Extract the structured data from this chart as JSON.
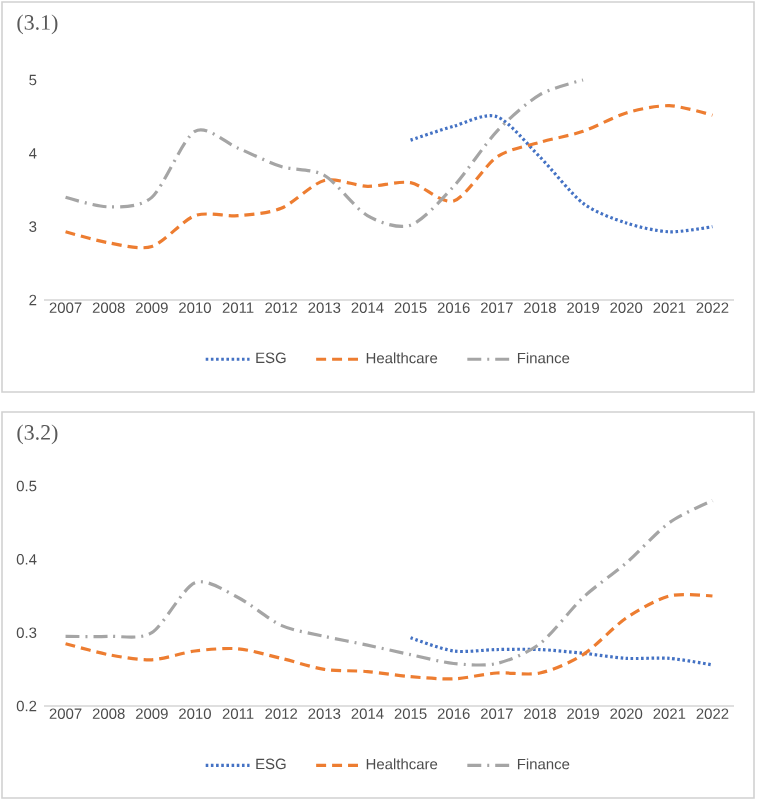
{
  "chart_data": [
    {
      "type": "line",
      "title": "(3.1)",
      "categories": [
        "2007",
        "2008",
        "2009",
        "2010",
        "2011",
        "2012",
        "2013",
        "2014",
        "2015",
        "2016",
        "2017",
        "2018",
        "2019",
        "2020",
        "2021",
        "2022"
      ],
      "ylim": [
        2,
        5
      ],
      "yticks": [
        2,
        3,
        4,
        5
      ],
      "legend": "bottom",
      "marker": "none",
      "series": [
        {
          "name": "ESG",
          "color": "#4472c4",
          "line_style": "dotted",
          "values": [
            null,
            null,
            null,
            null,
            null,
            null,
            null,
            null,
            4.18,
            4.37,
            4.5,
            3.95,
            3.32,
            3.05,
            2.93,
            3.0
          ]
        },
        {
          "name": "Healthcare",
          "color": "#ed7d31",
          "line_style": "dashed",
          "values": [
            2.93,
            2.78,
            2.73,
            3.15,
            3.15,
            3.25,
            3.63,
            3.55,
            3.6,
            3.35,
            3.95,
            4.15,
            4.3,
            4.55,
            4.65,
            4.52
          ]
        },
        {
          "name": "Finance",
          "color": "#a5a5a5",
          "line_style": "dashdot",
          "values": [
            3.4,
            3.27,
            3.4,
            4.3,
            4.07,
            3.82,
            3.7,
            3.15,
            3.02,
            3.55,
            4.3,
            4.8,
            5.0,
            null,
            null,
            null
          ]
        }
      ]
    },
    {
      "type": "line",
      "title": "(3.2)",
      "categories": [
        "2007",
        "2008",
        "2009",
        "2010",
        "2011",
        "2012",
        "2013",
        "2014",
        "2015",
        "2016",
        "2017",
        "2018",
        "2019",
        "2020",
        "2021",
        "2022"
      ],
      "ylim": [
        0.2,
        0.5
      ],
      "yticks": [
        0.2,
        0.3,
        0.4,
        0.5
      ],
      "legend": "bottom",
      "marker": "none",
      "series": [
        {
          "name": "ESG",
          "color": "#4472c4",
          "line_style": "dotted",
          "values": [
            null,
            null,
            null,
            null,
            null,
            null,
            null,
            null,
            0.293,
            0.275,
            0.277,
            0.277,
            0.272,
            0.265,
            0.265,
            0.256
          ]
        },
        {
          "name": "Healthcare",
          "color": "#ed7d31",
          "line_style": "dashed",
          "values": [
            0.285,
            0.27,
            0.263,
            0.275,
            0.278,
            0.265,
            0.25,
            0.247,
            0.24,
            0.237,
            0.245,
            0.245,
            0.27,
            0.32,
            0.35,
            0.35
          ]
        },
        {
          "name": "Finance",
          "color": "#a5a5a5",
          "line_style": "dashdot",
          "values": [
            0.295,
            0.295,
            0.3,
            0.368,
            0.348,
            0.31,
            0.295,
            0.283,
            0.27,
            0.258,
            0.258,
            0.285,
            0.348,
            0.395,
            0.45,
            0.48
          ]
        }
      ]
    }
  ]
}
